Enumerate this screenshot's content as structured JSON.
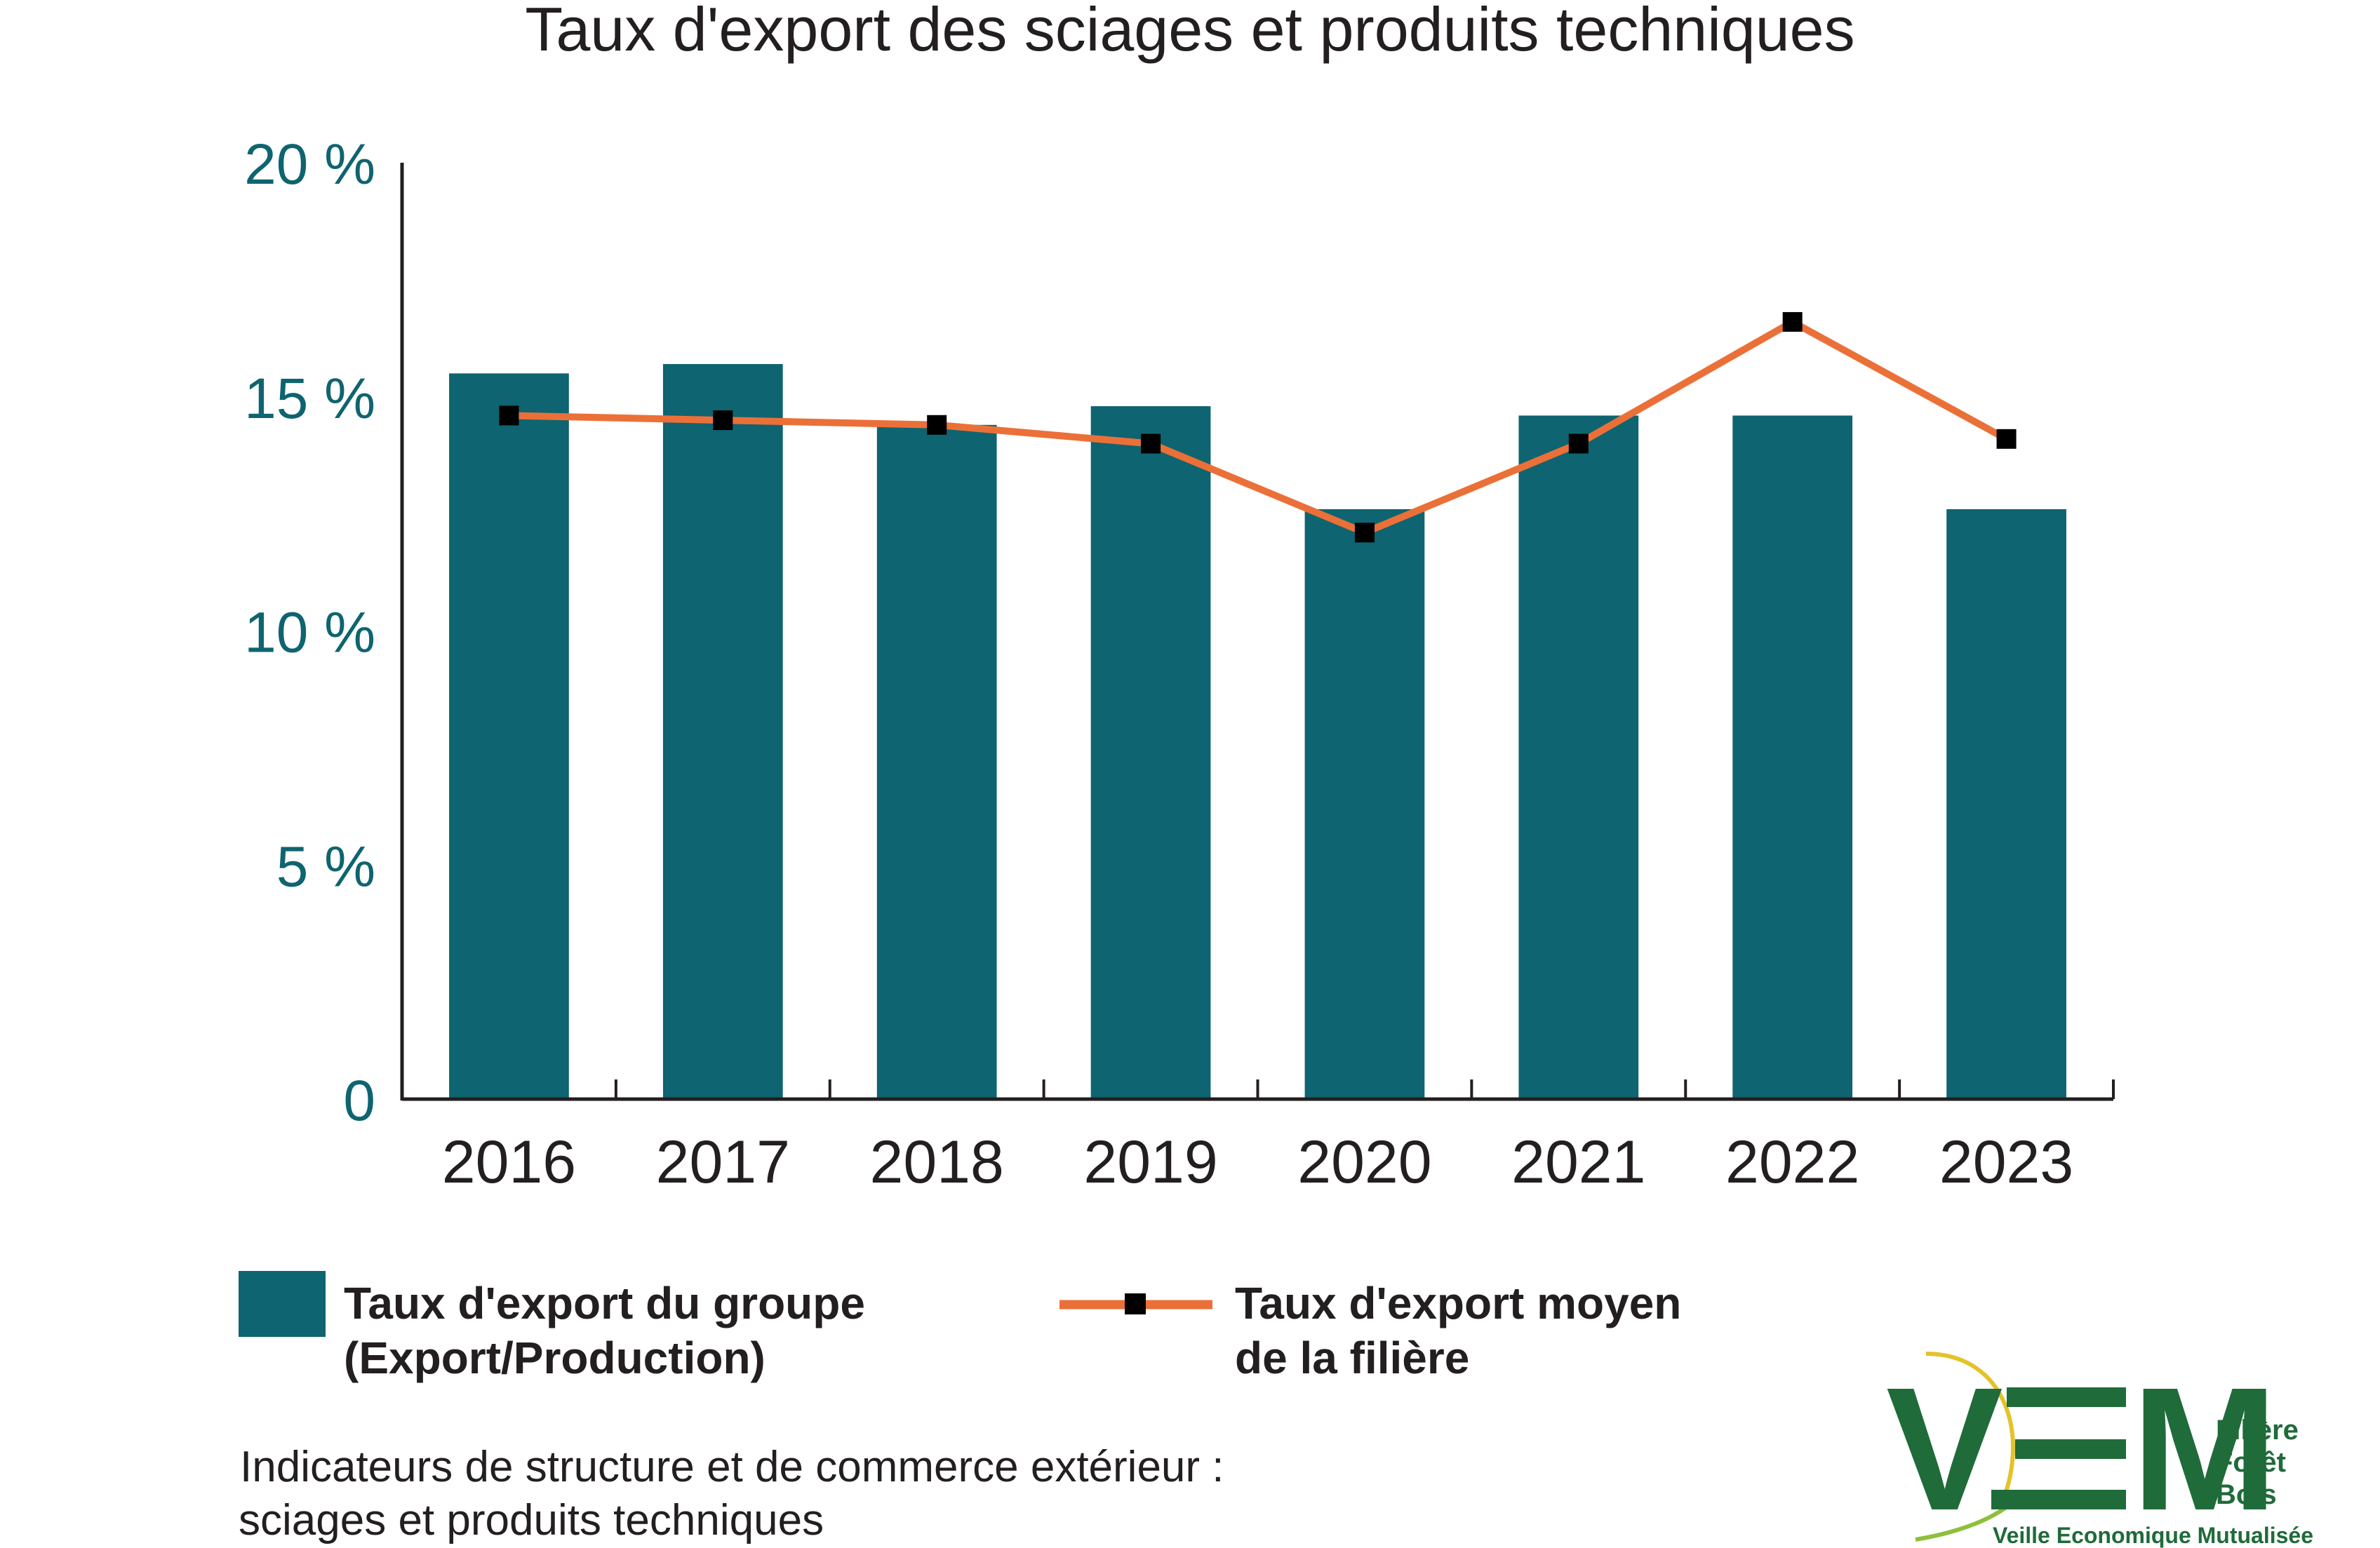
{
  "chart_data": {
    "type": "bar",
    "title": "Taux d'export des sciages et produits techniques",
    "categories": [
      "2016",
      "2017",
      "2018",
      "2019",
      "2020",
      "2021",
      "2022",
      "2023"
    ],
    "y_tick_labels": [
      "0",
      "5 %",
      "10 %",
      "15 %",
      "20 %"
    ],
    "ylim": [
      0,
      20
    ],
    "grid": false,
    "legend_position": "bottom-left",
    "series": [
      {
        "name_line1": "Taux d'export du groupe",
        "name_line2": "(Export/Production)",
        "kind": "bar",
        "color": "#0e6470",
        "values": [
          15.5,
          15.7,
          14.4,
          14.8,
          12.6,
          14.6,
          14.6,
          12.6
        ]
      },
      {
        "name_line1": "Taux d'export moyen",
        "name_line2": "de la filière",
        "kind": "line",
        "color": "#eb7038",
        "marker_color": "#000000",
        "values": [
          14.6,
          14.5,
          14.4,
          14.0,
          12.1,
          14.0,
          16.6,
          14.1
        ]
      }
    ]
  },
  "footer": {
    "line1": "Indicateurs de structure et de commerce extérieur :",
    "line2": "sciages et produits techniques"
  },
  "logo": {
    "letters": [
      "V",
      "M"
    ],
    "side_text": [
      "Filière",
      "Forêt",
      "Bois"
    ],
    "tagline": "Veille Economique Mutualisée",
    "color": "#1f6b3a",
    "accent": "#e3c32a"
  }
}
